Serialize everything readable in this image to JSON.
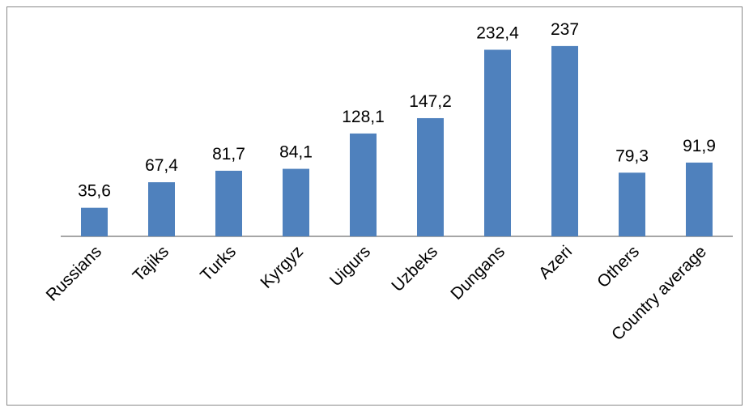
{
  "chart_data": {
    "type": "bar",
    "categories": [
      "Russians",
      "Tajiks",
      "Turks",
      "Kyrgyz",
      "Uigurs",
      "Uzbeks",
      "Dungans",
      "Azeri",
      "Others",
      "Country average"
    ],
    "values": [
      35.6,
      67.4,
      81.7,
      84.1,
      128.1,
      147.2,
      232.4,
      237,
      79.3,
      91.9
    ],
    "value_labels": [
      "35,6",
      "67,4",
      "81,7",
      "84,1",
      "128,1",
      "147,2",
      "232,4",
      "237",
      "79,3",
      "91,9"
    ],
    "color": "#4f81bd"
  }
}
